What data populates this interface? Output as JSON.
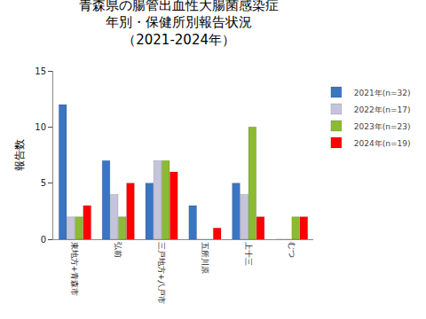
{
  "chart_data": {
    "type": "bar",
    "title": "青森県の腸管出血性大腸菌感染症\n年別・保健所別報告状況\n（2021-2024年）",
    "y_label": "報告数",
    "categories": [
      "東地方+青森市",
      "弘前",
      "三戸地方+八戸市",
      "五所川原",
      "上十三",
      "むつ"
    ],
    "series": [
      {
        "name": "2021年(n=32)",
        "color": "#3a75c4",
        "values": [
          12,
          7,
          5,
          3,
          5,
          0
        ]
      },
      {
        "name": "2022年(n=17)",
        "color": "#c4c4dc",
        "values": [
          2,
          4,
          7,
          0,
          4,
          0
        ]
      },
      {
        "name": "2023年(n=23)",
        "color": "#8cba34",
        "values": [
          2,
          2,
          7,
          0,
          10,
          2
        ]
      },
      {
        "name": "2024年(n=19)",
        "color": "#ff0000",
        "values": [
          3,
          5,
          6,
          1,
          2,
          2
        ]
      }
    ],
    "ylim": [
      0,
      15
    ],
    "yticks": [
      0,
      5,
      10,
      15
    ],
    "grid": false,
    "legend": "right"
  }
}
